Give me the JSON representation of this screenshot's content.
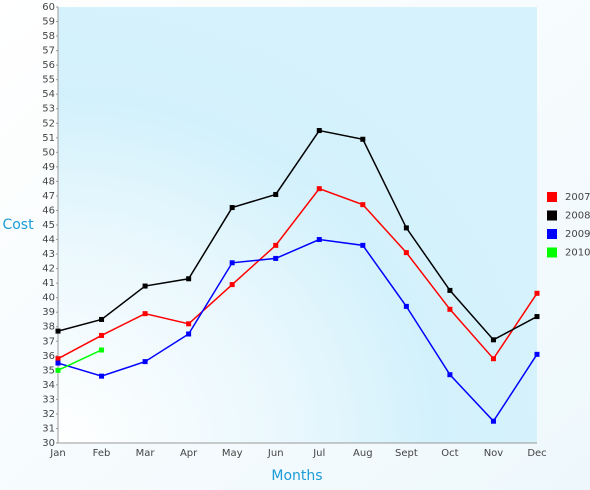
{
  "chart_data": {
    "type": "line",
    "xlabel": "Months",
    "ylabel": "Cost",
    "categories": [
      "Jan",
      "Feb",
      "Mar",
      "Apr",
      "May",
      "Jun",
      "Jul",
      "Aug",
      "Sept",
      "Oct",
      "Nov",
      "Dec"
    ],
    "series": [
      {
        "name": "2007",
        "color": "#ff0000",
        "values": [
          35.8,
          37.4,
          38.9,
          38.2,
          40.9,
          43.6,
          47.5,
          46.4,
          43.1,
          39.2,
          35.8,
          40.3
        ]
      },
      {
        "name": "2008",
        "color": "#000000",
        "values": [
          37.7,
          38.5,
          40.8,
          41.3,
          46.2,
          47.1,
          51.5,
          50.9,
          44.8,
          40.5,
          37.1,
          38.7
        ]
      },
      {
        "name": "2009",
        "color": "#0000ff",
        "values": [
          35.5,
          34.6,
          35.6,
          37.5,
          42.4,
          42.7,
          44.0,
          43.6,
          39.4,
          34.7,
          31.5,
          36.1
        ]
      },
      {
        "name": "2010",
        "color": "#00ff00",
        "values": [
          35.0,
          36.4,
          null,
          null,
          null,
          null,
          null,
          null,
          null,
          null,
          null,
          null
        ]
      }
    ],
    "ylim": [
      30,
      60
    ],
    "yticks": [
      30,
      31,
      32,
      33,
      34,
      35,
      36,
      37,
      38,
      39,
      40,
      41,
      42,
      43,
      44,
      45,
      46,
      47,
      48,
      49,
      50,
      51,
      52,
      53,
      54,
      55,
      56,
      57,
      58,
      59,
      60
    ],
    "grid": false,
    "legend": "right"
  }
}
